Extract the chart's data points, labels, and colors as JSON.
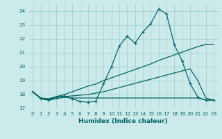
{
  "xlabel": "Humidex (Indice chaleur)",
  "background_color": "#cceaea",
  "grid_color": "#aad4d4",
  "line_color": "#006666",
  "x": [
    0,
    1,
    2,
    3,
    4,
    5,
    6,
    7,
    8,
    9,
    10,
    11,
    12,
    13,
    14,
    15,
    16,
    17,
    18,
    19,
    20,
    21,
    22,
    23
  ],
  "y_main": [
    18.2,
    17.7,
    17.6,
    17.8,
    17.9,
    17.7,
    17.5,
    17.45,
    17.5,
    18.8,
    20.0,
    21.5,
    22.2,
    21.7,
    22.5,
    23.1,
    24.15,
    23.8,
    21.6,
    20.4,
    18.8,
    17.8,
    17.6,
    17.6
  ],
  "y_line1": [
    18.2,
    17.75,
    17.7,
    17.85,
    18.0,
    18.2,
    18.4,
    18.6,
    18.75,
    19.0,
    19.2,
    19.4,
    19.6,
    19.8,
    20.0,
    20.2,
    20.45,
    20.65,
    20.85,
    21.05,
    21.25,
    21.45,
    21.6,
    21.6
  ],
  "y_line2": [
    18.2,
    17.75,
    17.65,
    17.8,
    17.85,
    17.9,
    17.95,
    18.0,
    18.1,
    18.2,
    18.35,
    18.5,
    18.65,
    18.8,
    18.95,
    19.1,
    19.25,
    19.4,
    19.55,
    19.7,
    19.85,
    19.0,
    17.75,
    17.6
  ],
  "y_flat": [
    18.2,
    17.7,
    17.6,
    17.7,
    17.8,
    17.75,
    17.75,
    17.75,
    17.75,
    17.75,
    17.75,
    17.75,
    17.75,
    17.75,
    17.75,
    17.75,
    17.75,
    17.75,
    17.75,
    17.75,
    17.75,
    17.75,
    17.6,
    17.6
  ],
  "ylim": [
    17.0,
    24.5
  ],
  "xlim": [
    -0.5,
    23.5
  ],
  "yticks": [
    17,
    18,
    19,
    20,
    21,
    22,
    23,
    24
  ],
  "xticks": [
    0,
    1,
    2,
    3,
    4,
    5,
    6,
    7,
    8,
    9,
    10,
    11,
    12,
    13,
    14,
    15,
    16,
    17,
    18,
    19,
    20,
    21,
    22,
    23
  ],
  "xtick_labels": [
    "0",
    "1",
    "2",
    "3",
    "4",
    "5",
    "6",
    "7",
    "8",
    "9",
    "10",
    "11",
    "12",
    "13",
    "14",
    "15",
    "16",
    "17",
    "18",
    "19",
    "20",
    "21",
    "22",
    "23"
  ]
}
